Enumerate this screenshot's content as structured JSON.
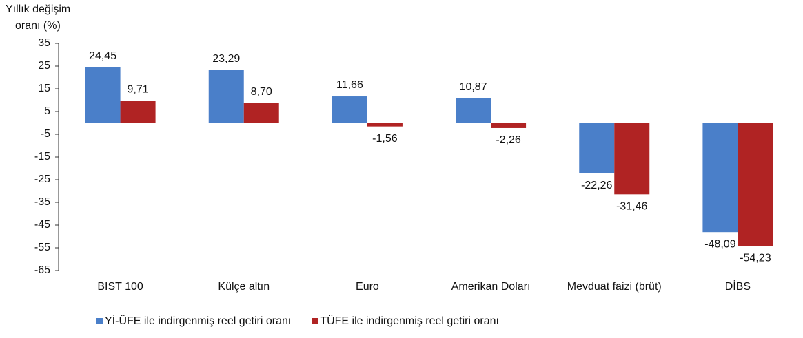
{
  "chart_data": {
    "type": "bar",
    "ylabel": [
      "Yıllık değişim",
      "oranı (%)"
    ],
    "categories": [
      "BIST 100",
      "Külçe altın",
      "Euro",
      "Amerikan Doları",
      "Mevduat faizi (brüt)",
      "DİBS"
    ],
    "series": [
      {
        "name": "Yİ-ÜFE ile indirgenmiş reel getiri oranı",
        "color": "#4a7fc9",
        "values": [
          24.45,
          23.29,
          11.66,
          10.87,
          -22.26,
          -48.09
        ],
        "value_labels": [
          "24,45",
          "23,29",
          "11,66",
          "10,87",
          "-22,26",
          "-48,09"
        ]
      },
      {
        "name": "TÜFE ile indirgenmiş reel getiri oranı",
        "color": "#b02323",
        "values": [
          9.71,
          8.7,
          -1.56,
          -2.26,
          -31.46,
          -54.23
        ],
        "value_labels": [
          "9,71",
          "8,70",
          "-1,56",
          "-2,26",
          "-31,46",
          "-54,23"
        ]
      }
    ],
    "ylim": [
      -65,
      35
    ],
    "yticks": [
      35,
      25,
      15,
      5,
      -5,
      -15,
      -25,
      -35,
      -45,
      -55,
      -65
    ],
    "grid": false,
    "legend": "bottom"
  }
}
